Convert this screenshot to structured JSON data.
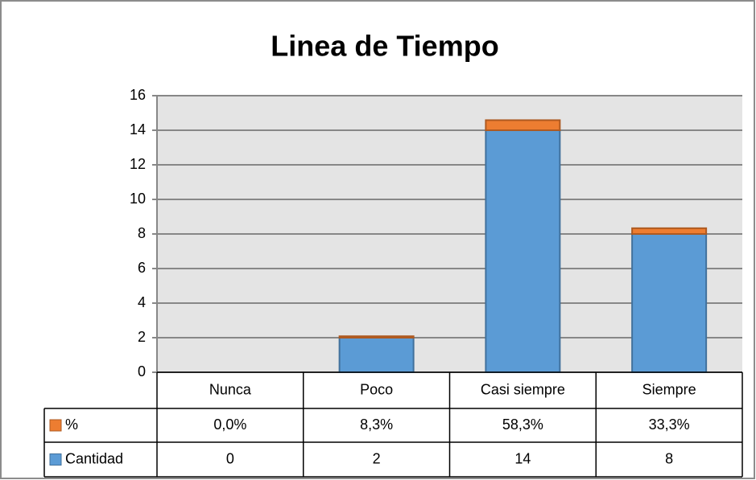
{
  "chart_data": {
    "type": "bar",
    "stacked": true,
    "title": "Linea de Tiempo",
    "categories": [
      "Nunca",
      "Poco",
      "Casi siempre",
      "Siempre"
    ],
    "series": [
      {
        "name": "Cantidad",
        "color": "#5b9bd5",
        "values": [
          0,
          2,
          14,
          8
        ]
      },
      {
        "name": "%",
        "color": "#ed7d31",
        "values": [
          0,
          0.083,
          0.583,
          0.333
        ],
        "value_labels": [
          "0,0%",
          "8,3%",
          "58,3%",
          "33,3%"
        ]
      }
    ],
    "ylim": [
      0,
      16
    ],
    "yticks": [
      0,
      2,
      4,
      6,
      8,
      10,
      12,
      14,
      16
    ],
    "grid": true,
    "data_table": true
  }
}
